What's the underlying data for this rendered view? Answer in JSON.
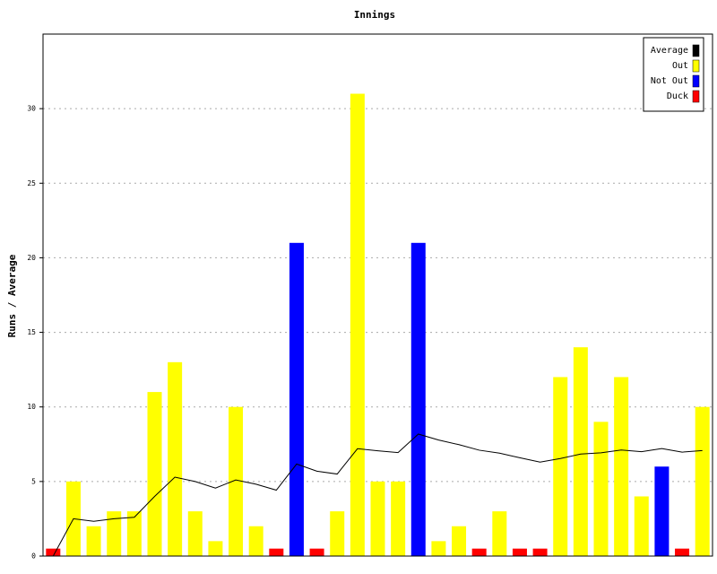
{
  "chart_data": {
    "type": "bar",
    "title": "Innings",
    "y_label": "Runs / Average",
    "categories": [
      null,
      null,
      null,
      null,
      null,
      null,
      null,
      null,
      null,
      null,
      null,
      null,
      null,
      null,
      null,
      null,
      null,
      null,
      null,
      null,
      null,
      null,
      null,
      null,
      null,
      null,
      null,
      null,
      null,
      null,
      null,
      null,
      null
    ],
    "series": [
      {
        "name": "Average",
        "type": "line",
        "color": "#000000",
        "values": [
          0,
          2.5,
          2.33,
          2.5,
          2.6,
          4,
          5.29,
          5,
          4.56,
          5.1,
          4.82,
          4.42,
          6.17,
          5.69,
          5.5,
          7.2,
          7.06,
          6.94,
          8.18,
          7.78,
          7.47,
          7.1,
          6.9,
          6.59,
          6.3,
          6.54,
          6.84,
          6.92,
          7.11,
          7,
          7.21,
          6.97,
          7.07
        ]
      },
      {
        "name": "Out",
        "type": "bar",
        "color": "#ffff00",
        "values": [
          null,
          5,
          2,
          3,
          3,
          11,
          13,
          3,
          1,
          10,
          2,
          null,
          null,
          null,
          3,
          31,
          5,
          5,
          null,
          1,
          2,
          null,
          3,
          null,
          null,
          12,
          14,
          9,
          12,
          4,
          null,
          null,
          10
        ]
      },
      {
        "name": "Not Out",
        "type": "bar",
        "color": "#0000ff",
        "values": [
          null,
          null,
          null,
          null,
          null,
          null,
          null,
          null,
          null,
          null,
          null,
          null,
          21,
          null,
          null,
          null,
          null,
          null,
          21,
          null,
          null,
          null,
          null,
          null,
          null,
          null,
          null,
          null,
          null,
          null,
          6,
          null,
          null
        ]
      },
      {
        "name": "Duck",
        "type": "bar",
        "color": "#ff0000",
        "values": [
          0.5,
          null,
          null,
          null,
          null,
          null,
          null,
          null,
          null,
          null,
          null,
          0.5,
          null,
          0.5,
          null,
          null,
          null,
          null,
          null,
          null,
          null,
          0.5,
          null,
          0.5,
          0.5,
          null,
          null,
          null,
          null,
          null,
          null,
          0.5,
          null
        ]
      }
    ],
    "ylim": [
      0,
      35
    ],
    "yticks": [
      0,
      5,
      10,
      15,
      20,
      25,
      30
    ],
    "grid": true,
    "legend": "top-right"
  }
}
